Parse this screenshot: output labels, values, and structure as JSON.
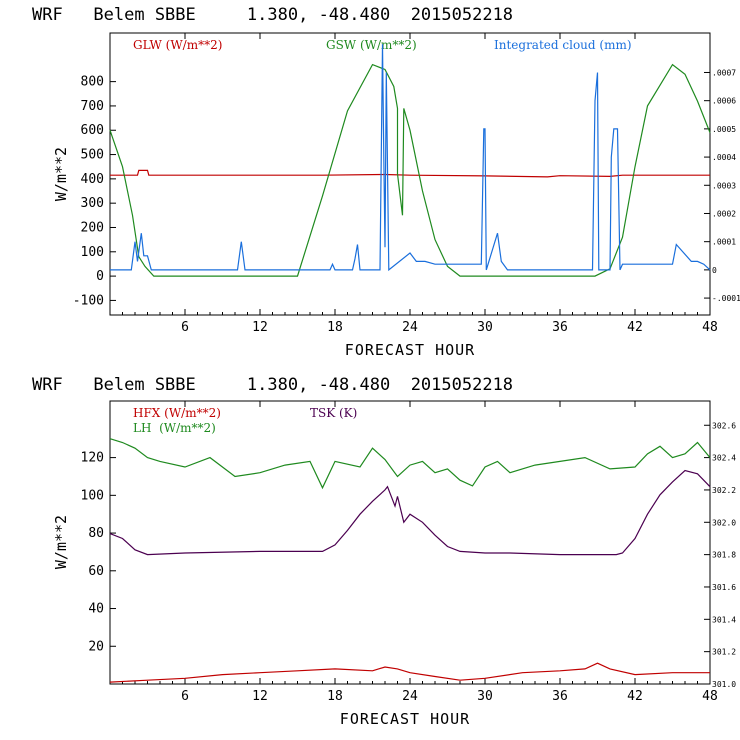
{
  "chart_data": [
    {
      "type": "line",
      "title": "WRF   Belem SBBE     1.380, -48.480  2015052218",
      "xlabel": "FORECAST HOUR",
      "ylabel": "W/m**2",
      "xlim": [
        0,
        48
      ],
      "ylim": [
        -160,
        1000
      ],
      "x_ticks": [
        "6",
        "12",
        "18",
        "24",
        "30",
        "36",
        "42",
        "48"
      ],
      "y_ticks": [
        "-100",
        "0",
        "100",
        "200",
        "300",
        "400",
        "500",
        "600",
        "700",
        "800"
      ],
      "y2_ticks": [
        ".0007",
        ".0006",
        ".0005",
        ".0004",
        ".0003",
        ".0002",
        ".0001",
        "0",
        "-.0001"
      ],
      "y2lim": [
        -0.00016,
        0.00084
      ],
      "legend": [
        "GLW (W/m**2)",
        "GSW (W/m**2)",
        "Integrated cloud (mm)"
      ],
      "series": [
        {
          "name": "GLW (W/m**2)",
          "color": "#c00000",
          "axis": "left",
          "x": [
            0,
            2.2,
            2.3,
            3,
            3.1,
            17,
            22,
            24,
            30,
            35,
            36,
            40,
            41,
            48
          ],
          "values": [
            415,
            415,
            435,
            435,
            415,
            415,
            418,
            415,
            412,
            408,
            413,
            410,
            415,
            415
          ]
        },
        {
          "name": "GSW (W/m**2)",
          "color": "#1f8a1f",
          "axis": "left",
          "x": [
            0,
            1,
            1.8,
            2.3,
            2.8,
            3.5,
            15,
            17,
            19,
            21,
            22,
            22.7,
            23,
            23,
            23.4,
            23.5,
            24,
            25,
            26,
            27,
            28,
            38.8,
            40,
            41,
            42,
            43,
            45,
            46,
            47,
            48
          ],
          "values": [
            600,
            450,
            250,
            80,
            40,
            0,
            0,
            330,
            680,
            870,
            850,
            780,
            690,
            420,
            250,
            690,
            600,
            350,
            150,
            40,
            0,
            0,
            30,
            160,
            450,
            700,
            870,
            830,
            720,
            590
          ]
        },
        {
          "name": "Integrated cloud (mm)",
          "color": "#1a6fdc",
          "axis": "right",
          "x": [
            0,
            1.7,
            2,
            2.2,
            2.5,
            2.7,
            3,
            3.3,
            10.2,
            10.5,
            10.8,
            17.6,
            17.8,
            18,
            19.4,
            19.6,
            19.8,
            20,
            21.6,
            21.8,
            21.9,
            22,
            22.1,
            22.3,
            24,
            24.5,
            25.2,
            26,
            27.5,
            29.7,
            29.9,
            30,
            30.1,
            31,
            31.3,
            31.8,
            38.6,
            38.8,
            39,
            39.1,
            40,
            40.1,
            40.3,
            40.6,
            40.8,
            41,
            45,
            45.3,
            46.5,
            47,
            47.5,
            48
          ],
          "values": [
            0,
            0,
            0.0001,
            3e-05,
            0.00013,
            5e-05,
            5e-05,
            0,
            0,
            0.0001,
            0,
            0,
            2e-05,
            0,
            0,
            4e-05,
            9e-05,
            0,
            0,
            0.0008,
            0.0004,
            8e-05,
            0.0007,
            0,
            6e-05,
            3e-05,
            3e-05,
            2e-05,
            2e-05,
            2e-05,
            0.0005,
            0.0005,
            0,
            0.00013,
            3e-05,
            0,
            0,
            0.0006,
            0.0007,
            0,
            0,
            0.0004,
            0.0005,
            0.0005,
            0,
            2e-05,
            2e-05,
            9e-05,
            3e-05,
            3e-05,
            2e-05,
            0
          ]
        }
      ]
    },
    {
      "type": "line",
      "title": "WRF   Belem SBBE     1.380, -48.480  2015052218",
      "xlabel": "FORECAST HOUR",
      "ylabel": "W/m**2",
      "xlim": [
        0,
        48
      ],
      "ylim": [
        0,
        150
      ],
      "x_ticks": [
        "6",
        "12",
        "18",
        "24",
        "30",
        "36",
        "42",
        "48"
      ],
      "y_ticks": [
        "20",
        "40",
        "60",
        "80",
        "100",
        "120"
      ],
      "y2_ticks": [
        "302.6",
        "302.4",
        "302.2",
        "302.0",
        "301.8",
        "301.6",
        "301.4",
        "301.2",
        "301.0"
      ],
      "y2lim": [
        301.0,
        302.75
      ],
      "legend": [
        "HFX (W/m**2)",
        "LH  (W/m**2)",
        "TSK (K)"
      ],
      "series": [
        {
          "name": "HFX (W/m**2)",
          "color": "#c00000",
          "axis": "left",
          "x": [
            0,
            3,
            6,
            9,
            12,
            15,
            18,
            21,
            22,
            23,
            24,
            26,
            28,
            30,
            33,
            36,
            38,
            39,
            40,
            42,
            45,
            48
          ],
          "values": [
            1,
            2,
            3,
            5,
            6,
            7,
            8,
            7,
            9,
            8,
            6,
            4,
            2,
            3,
            6,
            7,
            8,
            11,
            8,
            5,
            6,
            6
          ]
        },
        {
          "name": "LH  (W/m**2)",
          "color": "#1f8a1f",
          "axis": "left",
          "x": [
            0,
            1,
            2,
            3,
            4,
            6,
            8,
            10,
            12,
            14,
            16,
            17,
            18,
            20,
            21,
            22,
            23,
            24,
            25,
            26,
            27,
            28,
            29,
            30,
            31,
            32,
            34,
            36,
            38,
            40,
            42,
            43,
            44,
            45,
            46,
            47,
            48
          ],
          "values": [
            130,
            128,
            125,
            120,
            118,
            115,
            120,
            110,
            112,
            116,
            118,
            104,
            118,
            115,
            125,
            119,
            110,
            116,
            118,
            112,
            114,
            108,
            105,
            115,
            118,
            112,
            116,
            118,
            120,
            114,
            115,
            122,
            126,
            120,
            122,
            128,
            120
          ]
        },
        {
          "name": "TSK (K)",
          "color": "#4b0050",
          "axis": "right",
          "x": [
            0,
            1,
            2,
            3,
            6,
            12,
            17,
            18,
            19,
            20,
            21,
            22,
            22.2,
            22.8,
            23,
            23.5,
            24,
            25,
            26,
            27,
            28,
            30,
            32,
            36,
            38,
            39,
            40,
            40.5,
            41,
            42,
            43,
            44,
            45,
            46,
            47,
            48
          ],
          "values": [
            301.93,
            301.9,
            301.83,
            301.8,
            301.81,
            301.82,
            301.82,
            301.86,
            301.95,
            302.05,
            302.13,
            302.2,
            302.22,
            302.1,
            302.16,
            302.0,
            302.05,
            302.0,
            301.92,
            301.85,
            301.82,
            301.81,
            301.81,
            301.8,
            301.8,
            301.8,
            301.8,
            301.8,
            301.81,
            301.9,
            302.05,
            302.17,
            302.25,
            302.32,
            302.3,
            302.22
          ]
        }
      ]
    }
  ]
}
